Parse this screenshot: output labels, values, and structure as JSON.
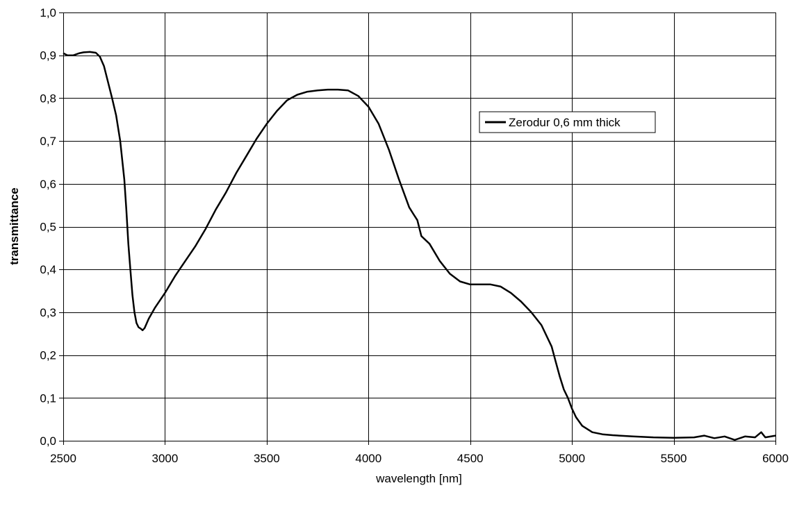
{
  "chart_data": {
    "type": "line",
    "xlabel": "wavelength [nm]",
    "ylabel": "transmittance",
    "xlim": [
      2500,
      6000
    ],
    "ylim": [
      0.0,
      1.0
    ],
    "x_ticks": [
      "2500",
      "3000",
      "3500",
      "4000",
      "4500",
      "5000",
      "5500",
      "6000"
    ],
    "y_ticks": [
      "0,0",
      "0,1",
      "0,2",
      "0,3",
      "0,4",
      "0,5",
      "0,6",
      "0,7",
      "0,8",
      "0,9",
      "1,0"
    ],
    "grid": true,
    "legend_position": "upper-right",
    "series": [
      {
        "name": "Zerodur 0,6 mm thick",
        "color": "#000000",
        "x": [
          2500,
          2520,
          2550,
          2580,
          2600,
          2630,
          2660,
          2680,
          2700,
          2720,
          2740,
          2760,
          2780,
          2800,
          2810,
          2820,
          2830,
          2840,
          2850,
          2860,
          2870,
          2880,
          2890,
          2900,
          2920,
          2950,
          3000,
          3050,
          3100,
          3150,
          3200,
          3250,
          3300,
          3350,
          3400,
          3450,
          3500,
          3550,
          3600,
          3650,
          3700,
          3750,
          3800,
          3850,
          3900,
          3950,
          4000,
          4050,
          4100,
          4150,
          4200,
          4220,
          4240,
          4260,
          4300,
          4350,
          4400,
          4450,
          4500,
          4550,
          4600,
          4650,
          4700,
          4750,
          4800,
          4850,
          4900,
          4920,
          4940,
          4960,
          4980,
          5000,
          5020,
          5050,
          5100,
          5150,
          5200,
          5300,
          5400,
          5500,
          5600,
          5650,
          5700,
          5750,
          5800,
          5850,
          5900,
          5930,
          5950,
          6000
        ],
        "y": [
          0.905,
          0.9,
          0.9,
          0.905,
          0.907,
          0.908,
          0.906,
          0.897,
          0.875,
          0.838,
          0.8,
          0.76,
          0.7,
          0.61,
          0.54,
          0.46,
          0.4,
          0.34,
          0.3,
          0.275,
          0.265,
          0.262,
          0.258,
          0.263,
          0.285,
          0.31,
          0.345,
          0.385,
          0.42,
          0.455,
          0.495,
          0.54,
          0.58,
          0.625,
          0.665,
          0.705,
          0.74,
          0.77,
          0.795,
          0.808,
          0.815,
          0.818,
          0.82,
          0.82,
          0.818,
          0.805,
          0.78,
          0.74,
          0.68,
          0.61,
          0.545,
          0.53,
          0.515,
          0.478,
          0.46,
          0.42,
          0.39,
          0.372,
          0.365,
          0.365,
          0.365,
          0.36,
          0.345,
          0.325,
          0.3,
          0.27,
          0.22,
          0.185,
          0.15,
          0.12,
          0.1,
          0.075,
          0.055,
          0.035,
          0.02,
          0.015,
          0.013,
          0.01,
          0.008,
          0.007,
          0.008,
          0.012,
          0.006,
          0.01,
          0.002,
          0.01,
          0.008,
          0.02,
          0.008,
          0.012
        ]
      }
    ]
  }
}
